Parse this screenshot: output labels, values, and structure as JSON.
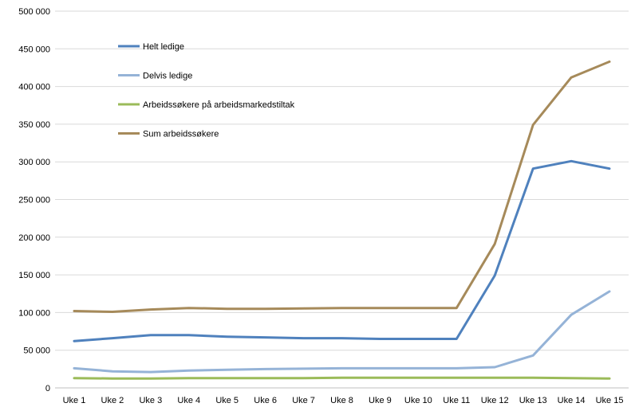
{
  "chart_data": {
    "type": "line",
    "title": "",
    "xlabel": "",
    "ylabel": "",
    "categories": [
      "Uke 1",
      "Uke 2",
      "Uke 3",
      "Uke 4",
      "Uke 5",
      "Uke 6",
      "Uke 7",
      "Uke 8",
      "Uke 9",
      "Uke 10",
      "Uke 11",
      "Uke 12",
      "Uke 13",
      "Uke 14",
      "Uke 15"
    ],
    "ylim": [
      0,
      500000
    ],
    "y_ticks": [
      0,
      50000,
      100000,
      150000,
      200000,
      250000,
      300000,
      350000,
      400000,
      450000,
      500000
    ],
    "y_tick_labels": [
      "0",
      "50 000",
      "100 000",
      "150 000",
      "200 000",
      "250 000",
      "300 000",
      "350 000",
      "400 000",
      "450 000",
      "500 000"
    ],
    "grid": "horizontal",
    "legend_position": "top-left",
    "series": [
      {
        "name": "Helt ledige",
        "color": "#4f81bd",
        "values": [
          62000,
          66000,
          70000,
          70000,
          68000,
          67000,
          66000,
          66000,
          65000,
          65000,
          65000,
          149000,
          291000,
          301000,
          291000
        ]
      },
      {
        "name": "Delvis ledige",
        "color": "#95b3d7",
        "values": [
          26000,
          22000,
          21000,
          23000,
          24000,
          25000,
          25500,
          26000,
          26000,
          26000,
          26000,
          27500,
          43000,
          97000,
          128000
        ]
      },
      {
        "name": "Arbeidssøkere på arbeidsmarkedstiltak",
        "color": "#9bbb59",
        "values": [
          13000,
          12500,
          12500,
          13000,
          13000,
          13000,
          13000,
          13500,
          13500,
          13500,
          13500,
          13500,
          13500,
          13000,
          12500
        ]
      },
      {
        "name": "Sum arbeidssøkere",
        "color": "#a68a5a",
        "values": [
          102000,
          101000,
          104000,
          106000,
          105000,
          105000,
          105500,
          106000,
          106000,
          106000,
          106000,
          191000,
          349000,
          412000,
          433000
        ]
      }
    ]
  }
}
